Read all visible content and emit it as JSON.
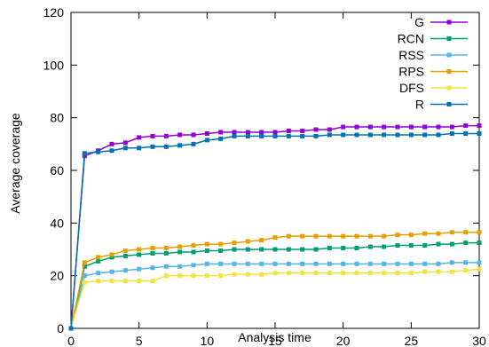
{
  "chart_data": {
    "type": "line",
    "xlabel": "Analysis time",
    "ylabel": "Average coverage",
    "xlim": [
      0,
      30
    ],
    "ylim": [
      0,
      120
    ],
    "xticks": [
      0,
      5,
      10,
      15,
      20,
      25,
      30
    ],
    "yticks": [
      0,
      20,
      40,
      60,
      80,
      100,
      120
    ],
    "grid": false,
    "legend_position": "top-right",
    "x": [
      0,
      1,
      2,
      3,
      4,
      5,
      6,
      7,
      8,
      9,
      10,
      11,
      12,
      13,
      14,
      15,
      16,
      17,
      18,
      19,
      20,
      21,
      22,
      23,
      24,
      25,
      26,
      27,
      28,
      29,
      30
    ],
    "series": [
      {
        "name": "G",
        "color": "#9400D3",
        "values": [
          0,
          65.5,
          67.5,
          70,
          70.5,
          72.5,
          73,
          73,
          73.5,
          73.5,
          74,
          74.5,
          74.5,
          74.5,
          74.5,
          74.5,
          75,
          75,
          75.5,
          75.5,
          76.5,
          76.5,
          76.5,
          76.5,
          76.5,
          76.5,
          76.5,
          76.5,
          76.5,
          77,
          77
        ]
      },
      {
        "name": "RCN",
        "color": "#009E73",
        "values": [
          0,
          23.5,
          25.5,
          27,
          27.5,
          28,
          28.5,
          28.5,
          29,
          29,
          29.5,
          29.5,
          30,
          30,
          30,
          30,
          30,
          30,
          30,
          30.5,
          30.5,
          30.5,
          31,
          31,
          31.5,
          31.5,
          31.5,
          32,
          32,
          32.5,
          32.5
        ]
      },
      {
        "name": "RSS",
        "color": "#56B4E9",
        "values": [
          0,
          20,
          21,
          21.5,
          22,
          22.5,
          23,
          23.5,
          23.5,
          24,
          24.5,
          24.5,
          24.5,
          24.5,
          24.5,
          24.5,
          24.5,
          24.5,
          24.5,
          24.5,
          24.5,
          24.5,
          24.5,
          24.5,
          24.5,
          24.5,
          24.5,
          24.5,
          25,
          25,
          25
        ]
      },
      {
        "name": "RPS",
        "color": "#E69F00",
        "values": [
          0,
          25,
          27,
          28,
          29.5,
          30,
          30.5,
          30.5,
          31,
          31.5,
          32,
          32,
          32.5,
          33,
          33.5,
          34.5,
          35,
          35,
          35,
          35,
          35,
          35,
          35,
          35,
          35.5,
          35.5,
          36,
          36,
          36.5,
          36.5,
          36.5
        ]
      },
      {
        "name": "DFS",
        "color": "#F0E442",
        "values": [
          0,
          17.5,
          18,
          18,
          18,
          18,
          18,
          20,
          20,
          20,
          20,
          20,
          20.5,
          20.5,
          20.5,
          21,
          21,
          21,
          21,
          21,
          21,
          21,
          21,
          21,
          21,
          21,
          21.5,
          21.5,
          21.5,
          22,
          22.5
        ]
      },
      {
        "name": "R",
        "color": "#0072B2",
        "values": [
          0,
          66.5,
          67,
          67.5,
          68.5,
          68.5,
          69,
          69,
          69.5,
          70,
          71.5,
          72,
          73,
          73,
          73,
          73,
          73,
          73,
          73,
          73.5,
          73.5,
          73.5,
          73.5,
          73.5,
          73.5,
          73.5,
          73.5,
          73.5,
          74,
          74,
          74
        ]
      }
    ]
  }
}
